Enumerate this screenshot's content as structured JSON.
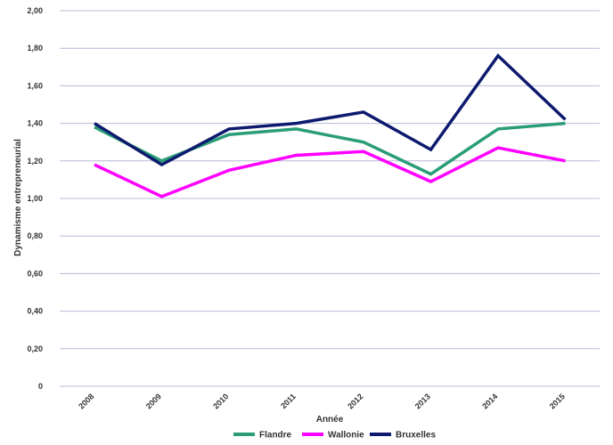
{
  "chart_data": {
    "type": "line",
    "title": "",
    "xlabel": "Année",
    "ylabel": "Dynamisme entrepreneurial",
    "categories": [
      "2008",
      "2009",
      "2010",
      "2011",
      "2012",
      "2013",
      "2014",
      "2015"
    ],
    "ylim": [
      0,
      2
    ],
    "y_ticks": [
      "0",
      "0,20",
      "0,40",
      "0,60",
      "0,80",
      "1,00",
      "1,20",
      "1,40",
      "1,60",
      "1,80",
      "2,00"
    ],
    "grid": true,
    "legend_position": "bottom",
    "series": [
      {
        "name": "Flandre",
        "color": "#2a9d78",
        "values": [
          1.38,
          1.2,
          1.34,
          1.37,
          1.3,
          1.13,
          1.37,
          1.4
        ]
      },
      {
        "name": "Wallonie",
        "color": "#ff00ff",
        "values": [
          1.18,
          1.01,
          1.15,
          1.23,
          1.25,
          1.09,
          1.27,
          1.2
        ]
      },
      {
        "name": "Bruxelles",
        "color": "#0d1a6e",
        "values": [
          1.4,
          1.18,
          1.37,
          1.4,
          1.46,
          1.26,
          1.76,
          1.42
        ]
      }
    ]
  }
}
